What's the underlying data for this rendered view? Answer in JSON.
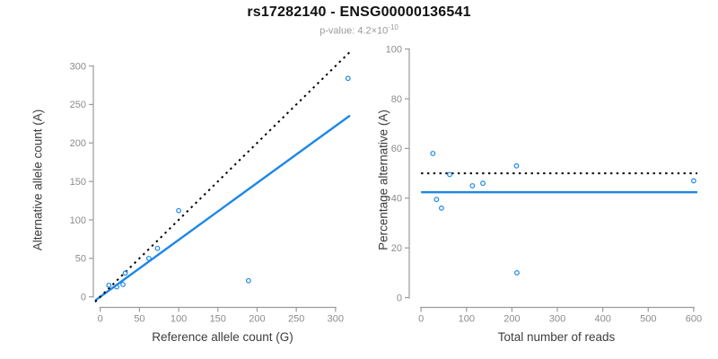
{
  "header": {
    "title": "rs17282140 - ENSG00000136541",
    "subtitle_prefix": "p-value: 4.2×10",
    "subtitle_exponent": "-10"
  },
  "colors": {
    "accent_blue": "#1E87E5",
    "line_black": "#000000",
    "axis_gray": "#9B9B9B",
    "tick_label_gray": "#8C8C8C",
    "axis_title_gray": "#3D3D3D",
    "subtitle_gray": "#9A9A9A",
    "background": "#FFFFFF"
  },
  "chart_data": [
    {
      "type": "scatter",
      "name": "allele-count-scatter",
      "xlabel": "Reference allele count (G)",
      "ylabel": "Alternative allele count (A)",
      "xlim": [
        -6.5,
        318.5
      ],
      "ylim": [
        -12,
        324
      ],
      "xticks": [
        0,
        50,
        100,
        150,
        200,
        250,
        300
      ],
      "yticks": [
        0,
        50,
        100,
        150,
        200,
        250,
        300
      ],
      "grid": false,
      "legend": null,
      "points": [
        [
          11,
          15
        ],
        [
          21,
          13
        ],
        [
          29,
          16
        ],
        [
          32,
          31
        ],
        [
          62,
          50
        ],
        [
          73,
          63
        ],
        [
          100,
          112
        ],
        [
          189,
          21
        ],
        [
          316,
          284
        ]
      ],
      "lines": [
        {
          "name": "fitted-allele-ratio-line",
          "style": "solid",
          "color": "accent_blue",
          "slope": 0.74,
          "intercept": 0,
          "width": 2.4
        },
        {
          "name": "expected-identity-line",
          "style": "dashed",
          "color": "line_black",
          "slope": 1,
          "intercept": 0,
          "width": 2
        }
      ]
    },
    {
      "type": "scatter",
      "name": "percentage-vs-coverage-scatter",
      "xlabel": "Total number of reads",
      "ylabel": "Percentage alternative (A)",
      "xlim": [
        -22,
        618
      ],
      "ylim": [
        -3.4,
        100.6
      ],
      "xticks": [
        0,
        100,
        200,
        300,
        400,
        500,
        600
      ],
      "yticks": [
        0,
        20,
        40,
        60,
        80,
        100
      ],
      "grid": false,
      "legend": null,
      "points": [
        [
          26,
          58
        ],
        [
          34,
          39.5
        ],
        [
          45,
          36
        ],
        [
          63,
          49.5
        ],
        [
          113,
          45
        ],
        [
          136,
          46
        ],
        [
          210,
          53
        ],
        [
          211,
          10
        ],
        [
          600,
          47
        ]
      ],
      "lines": [
        {
          "name": "fitted-percentage-line",
          "style": "solid",
          "color": "accent_blue",
          "hline": 42.4,
          "span": [
            0,
            608
          ],
          "width": 2.4
        },
        {
          "name": "expected-percentage-line",
          "style": "dashed",
          "color": "line_black",
          "hline": 50,
          "span": [
            0,
            608
          ],
          "width": 2
        }
      ]
    }
  ]
}
